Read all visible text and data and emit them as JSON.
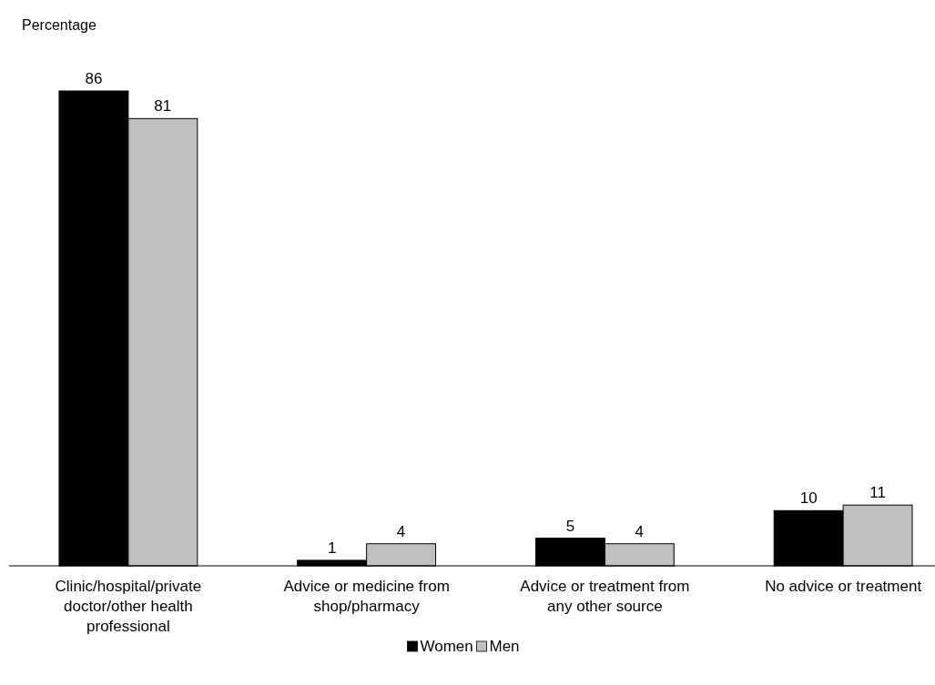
{
  "chart_data": {
    "type": "bar",
    "ylabel": "Percentage",
    "categories": [
      "Clinic/hospital/private doctor/other health professional",
      "Advice or medicine from shop/pharmacy",
      "Advice or treatment from any other source",
      "No advice or treatment"
    ],
    "series": [
      {
        "name": "Women",
        "color": "#000000",
        "values": [
          86,
          1,
          5,
          10
        ]
      },
      {
        "name": "Men",
        "color": "#c0c0c0",
        "values": [
          81,
          4,
          4,
          11
        ]
      }
    ],
    "data_labels": true,
    "legend": "bottom"
  }
}
